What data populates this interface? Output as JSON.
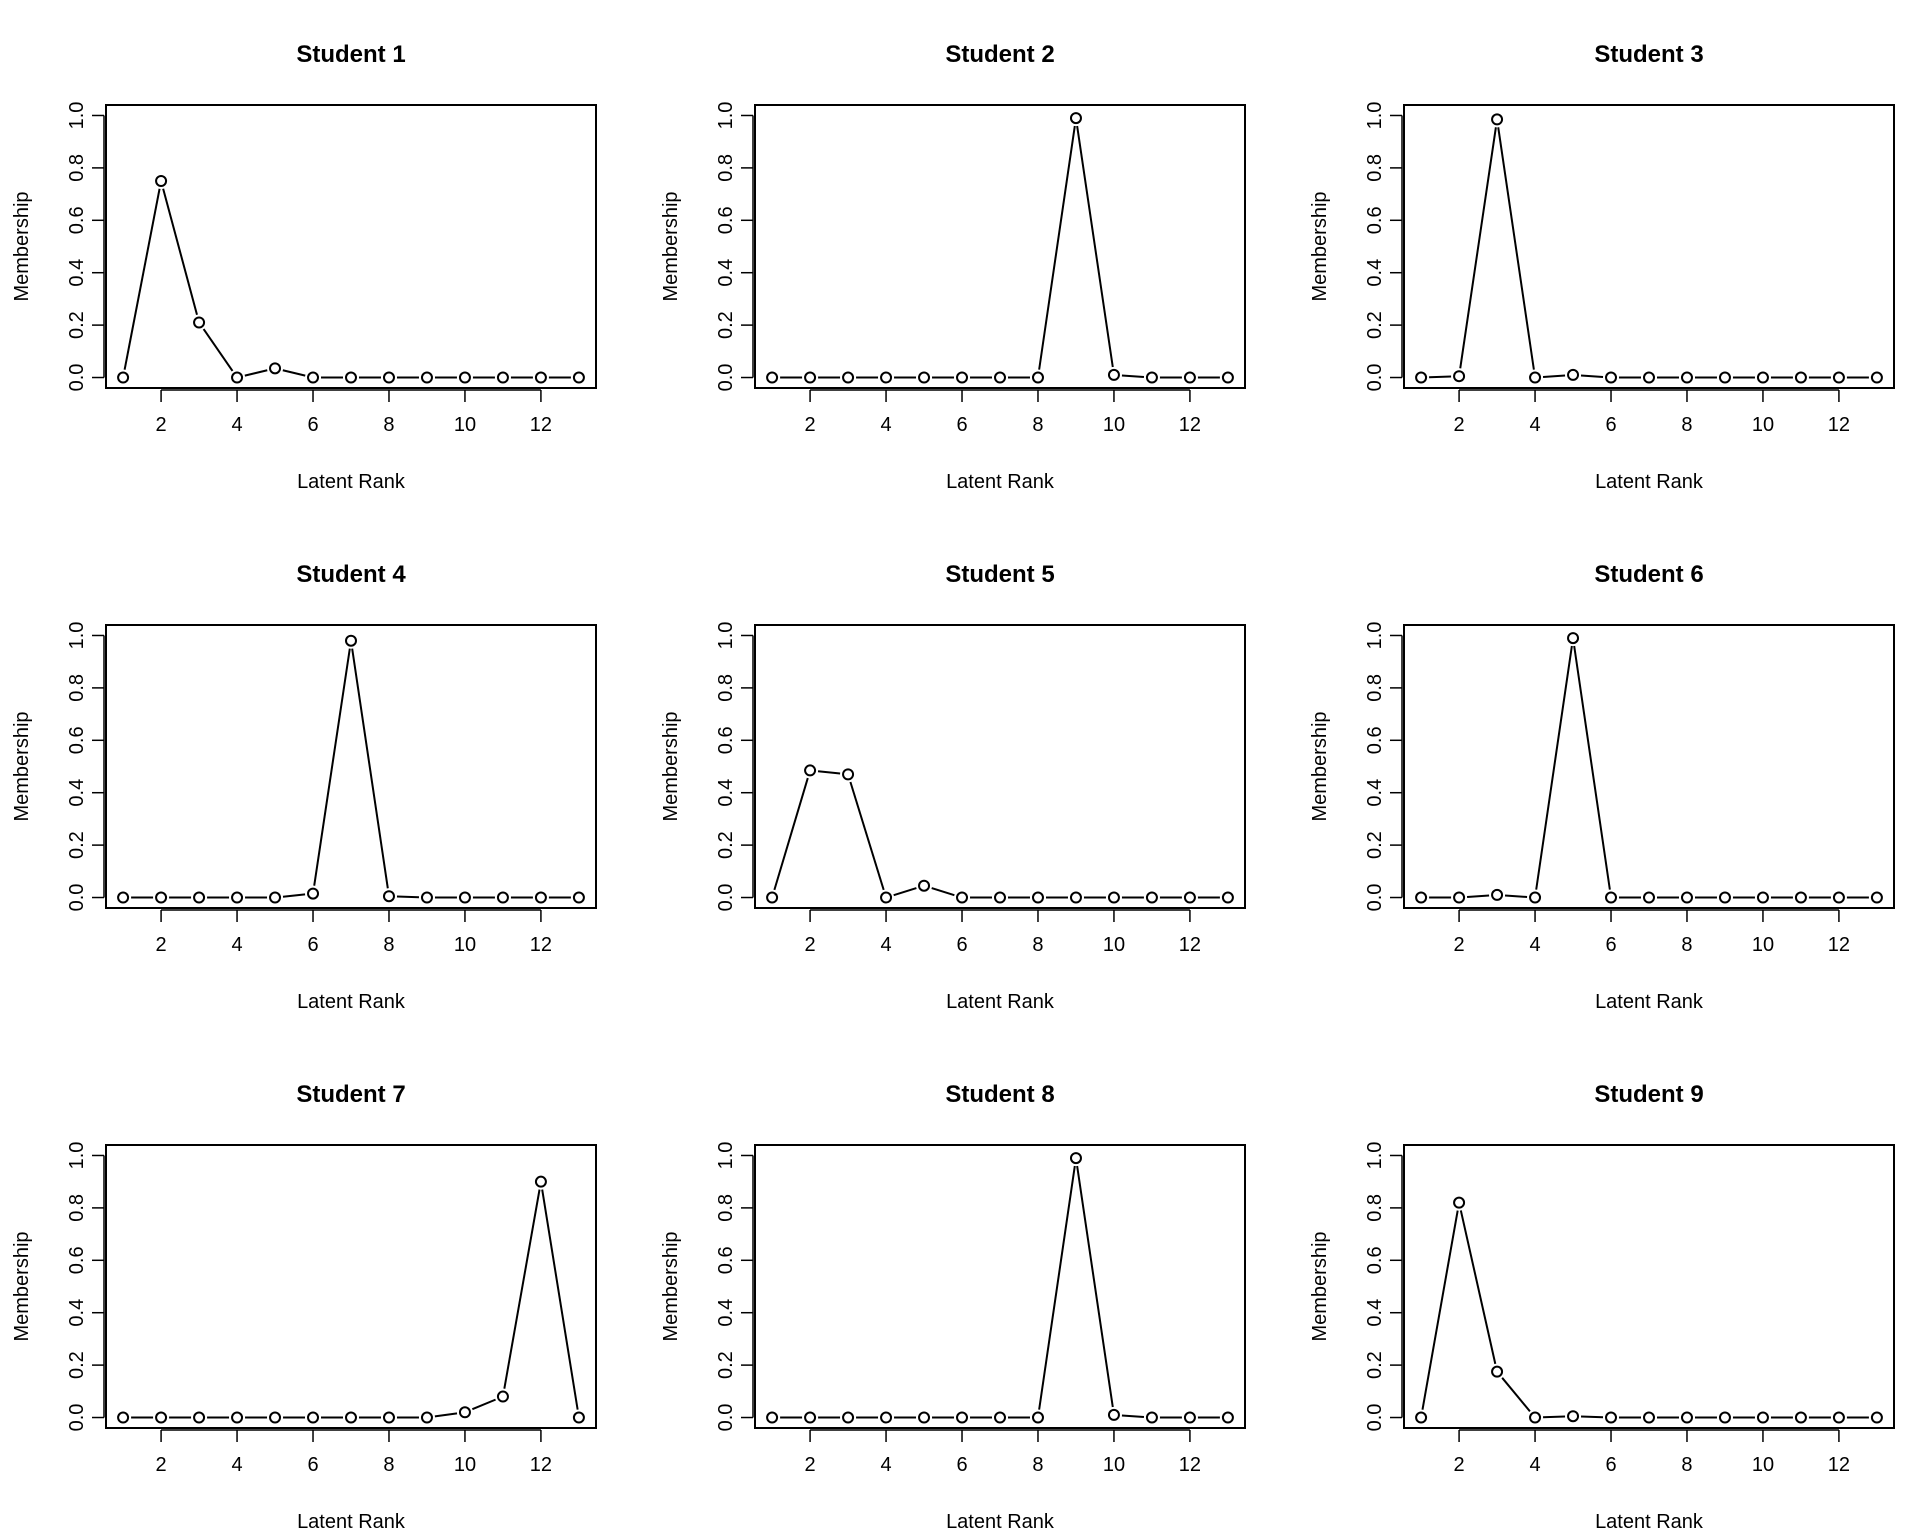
{
  "chart_data": [
    {
      "type": "line",
      "title": "Student 1",
      "xlabel": "Latent Rank",
      "ylabel": "Membership",
      "x": [
        1,
        2,
        3,
        4,
        5,
        6,
        7,
        8,
        9,
        10,
        11,
        12,
        13
      ],
      "values": [
        0.0,
        0.75,
        0.21,
        0.0,
        0.035,
        0.0,
        0.0,
        0.0,
        0.0,
        0.0,
        0.0,
        0.0,
        0.0
      ],
      "xticks": [
        2,
        4,
        6,
        8,
        10,
        12
      ],
      "yticks": [
        0.0,
        0.2,
        0.4,
        0.6,
        0.8,
        1.0
      ],
      "xtick_labels": [
        "2",
        "4",
        "6",
        "8",
        "10",
        "12"
      ],
      "ytick_labels": [
        "0.0",
        "0.2",
        "0.4",
        "0.6",
        "0.8",
        "1.0"
      ],
      "xlim": [
        0.55,
        13.45
      ],
      "ylim": [
        -0.04,
        1.04
      ]
    },
    {
      "type": "line",
      "title": "Student 2",
      "xlabel": "Latent Rank",
      "ylabel": "Membership",
      "x": [
        1,
        2,
        3,
        4,
        5,
        6,
        7,
        8,
        9,
        10,
        11,
        12,
        13
      ],
      "values": [
        0.0,
        0.0,
        0.0,
        0.0,
        0.0,
        0.0,
        0.0,
        0.0,
        0.99,
        0.01,
        0.0,
        0.0,
        0.0
      ],
      "xticks": [
        2,
        4,
        6,
        8,
        10,
        12
      ],
      "yticks": [
        0.0,
        0.2,
        0.4,
        0.6,
        0.8,
        1.0
      ],
      "xtick_labels": [
        "2",
        "4",
        "6",
        "8",
        "10",
        "12"
      ],
      "ytick_labels": [
        "0.0",
        "0.2",
        "0.4",
        "0.6",
        "0.8",
        "1.0"
      ],
      "xlim": [
        0.55,
        13.45
      ],
      "ylim": [
        -0.04,
        1.04
      ]
    },
    {
      "type": "line",
      "title": "Student 3",
      "xlabel": "Latent Rank",
      "ylabel": "Membership",
      "x": [
        1,
        2,
        3,
        4,
        5,
        6,
        7,
        8,
        9,
        10,
        11,
        12,
        13
      ],
      "values": [
        0.0,
        0.005,
        0.985,
        0.0,
        0.01,
        0.0,
        0.0,
        0.0,
        0.0,
        0.0,
        0.0,
        0.0,
        0.0
      ],
      "xticks": [
        2,
        4,
        6,
        8,
        10,
        12
      ],
      "yticks": [
        0.0,
        0.2,
        0.4,
        0.6,
        0.8,
        1.0
      ],
      "xtick_labels": [
        "2",
        "4",
        "6",
        "8",
        "10",
        "12"
      ],
      "ytick_labels": [
        "0.0",
        "0.2",
        "0.4",
        "0.6",
        "0.8",
        "1.0"
      ],
      "xlim": [
        0.55,
        13.45
      ],
      "ylim": [
        -0.04,
        1.04
      ]
    },
    {
      "type": "line",
      "title": "Student 4",
      "xlabel": "Latent Rank",
      "ylabel": "Membership",
      "x": [
        1,
        2,
        3,
        4,
        5,
        6,
        7,
        8,
        9,
        10,
        11,
        12,
        13
      ],
      "values": [
        0.0,
        0.0,
        0.0,
        0.0,
        0.0,
        0.015,
        0.98,
        0.005,
        0.0,
        0.0,
        0.0,
        0.0,
        0.0
      ],
      "xticks": [
        2,
        4,
        6,
        8,
        10,
        12
      ],
      "yticks": [
        0.0,
        0.2,
        0.4,
        0.6,
        0.8,
        1.0
      ],
      "xtick_labels": [
        "2",
        "4",
        "6",
        "8",
        "10",
        "12"
      ],
      "ytick_labels": [
        "0.0",
        "0.2",
        "0.4",
        "0.6",
        "0.8",
        "1.0"
      ],
      "xlim": [
        0.55,
        13.45
      ],
      "ylim": [
        -0.04,
        1.04
      ]
    },
    {
      "type": "line",
      "title": "Student 5",
      "xlabel": "Latent Rank",
      "ylabel": "Membership",
      "x": [
        1,
        2,
        3,
        4,
        5,
        6,
        7,
        8,
        9,
        10,
        11,
        12,
        13
      ],
      "values": [
        0.0,
        0.485,
        0.47,
        0.0,
        0.045,
        0.0,
        0.0,
        0.0,
        0.0,
        0.0,
        0.0,
        0.0,
        0.0
      ],
      "xticks": [
        2,
        4,
        6,
        8,
        10,
        12
      ],
      "yticks": [
        0.0,
        0.2,
        0.4,
        0.6,
        0.8,
        1.0
      ],
      "xtick_labels": [
        "2",
        "4",
        "6",
        "8",
        "10",
        "12"
      ],
      "ytick_labels": [
        "0.0",
        "0.2",
        "0.4",
        "0.6",
        "0.8",
        "1.0"
      ],
      "xlim": [
        0.55,
        13.45
      ],
      "ylim": [
        -0.04,
        1.04
      ]
    },
    {
      "type": "line",
      "title": "Student 6",
      "xlabel": "Latent Rank",
      "ylabel": "Membership",
      "x": [
        1,
        2,
        3,
        4,
        5,
        6,
        7,
        8,
        9,
        10,
        11,
        12,
        13
      ],
      "values": [
        0.0,
        0.0,
        0.01,
        0.0,
        0.99,
        0.0,
        0.0,
        0.0,
        0.0,
        0.0,
        0.0,
        0.0,
        0.0
      ],
      "xticks": [
        2,
        4,
        6,
        8,
        10,
        12
      ],
      "yticks": [
        0.0,
        0.2,
        0.4,
        0.6,
        0.8,
        1.0
      ],
      "xtick_labels": [
        "2",
        "4",
        "6",
        "8",
        "10",
        "12"
      ],
      "ytick_labels": [
        "0.0",
        "0.2",
        "0.4",
        "0.6",
        "0.8",
        "1.0"
      ],
      "xlim": [
        0.55,
        13.45
      ],
      "ylim": [
        -0.04,
        1.04
      ]
    },
    {
      "type": "line",
      "title": "Student 7",
      "xlabel": "Latent Rank",
      "ylabel": "Membership",
      "x": [
        1,
        2,
        3,
        4,
        5,
        6,
        7,
        8,
        9,
        10,
        11,
        12,
        13
      ],
      "values": [
        0.0,
        0.0,
        0.0,
        0.0,
        0.0,
        0.0,
        0.0,
        0.0,
        0.0,
        0.02,
        0.08,
        0.9,
        0.0
      ],
      "xticks": [
        2,
        4,
        6,
        8,
        10,
        12
      ],
      "yticks": [
        0.0,
        0.2,
        0.4,
        0.6,
        0.8,
        1.0
      ],
      "xtick_labels": [
        "2",
        "4",
        "6",
        "8",
        "10",
        "12"
      ],
      "ytick_labels": [
        "0.0",
        "0.2",
        "0.4",
        "0.6",
        "0.8",
        "1.0"
      ],
      "xlim": [
        0.55,
        13.45
      ],
      "ylim": [
        -0.04,
        1.04
      ]
    },
    {
      "type": "line",
      "title": "Student 8",
      "xlabel": "Latent Rank",
      "ylabel": "Membership",
      "x": [
        1,
        2,
        3,
        4,
        5,
        6,
        7,
        8,
        9,
        10,
        11,
        12,
        13
      ],
      "values": [
        0.0,
        0.0,
        0.0,
        0.0,
        0.0,
        0.0,
        0.0,
        0.0,
        0.99,
        0.01,
        0.0,
        0.0,
        0.0
      ],
      "xticks": [
        2,
        4,
        6,
        8,
        10,
        12
      ],
      "yticks": [
        0.0,
        0.2,
        0.4,
        0.6,
        0.8,
        1.0
      ],
      "xtick_labels": [
        "2",
        "4",
        "6",
        "8",
        "10",
        "12"
      ],
      "ytick_labels": [
        "0.0",
        "0.2",
        "0.4",
        "0.6",
        "0.8",
        "1.0"
      ],
      "xlim": [
        0.55,
        13.45
      ],
      "ylim": [
        -0.04,
        1.04
      ]
    },
    {
      "type": "line",
      "title": "Student 9",
      "xlabel": "Latent Rank",
      "ylabel": "Membership",
      "x": [
        1,
        2,
        3,
        4,
        5,
        6,
        7,
        8,
        9,
        10,
        11,
        12,
        13
      ],
      "values": [
        0.0,
        0.82,
        0.175,
        0.0,
        0.005,
        0.0,
        0.0,
        0.0,
        0.0,
        0.0,
        0.0,
        0.0,
        0.0
      ],
      "xticks": [
        2,
        4,
        6,
        8,
        10,
        12
      ],
      "yticks": [
        0.0,
        0.2,
        0.4,
        0.6,
        0.8,
        1.0
      ],
      "xtick_labels": [
        "2",
        "4",
        "6",
        "8",
        "10",
        "12"
      ],
      "ytick_labels": [
        "0.0",
        "0.2",
        "0.4",
        "0.6",
        "0.8",
        "1.0"
      ],
      "xlim": [
        0.55,
        13.45
      ],
      "ylim": [
        -0.04,
        1.04
      ]
    }
  ]
}
